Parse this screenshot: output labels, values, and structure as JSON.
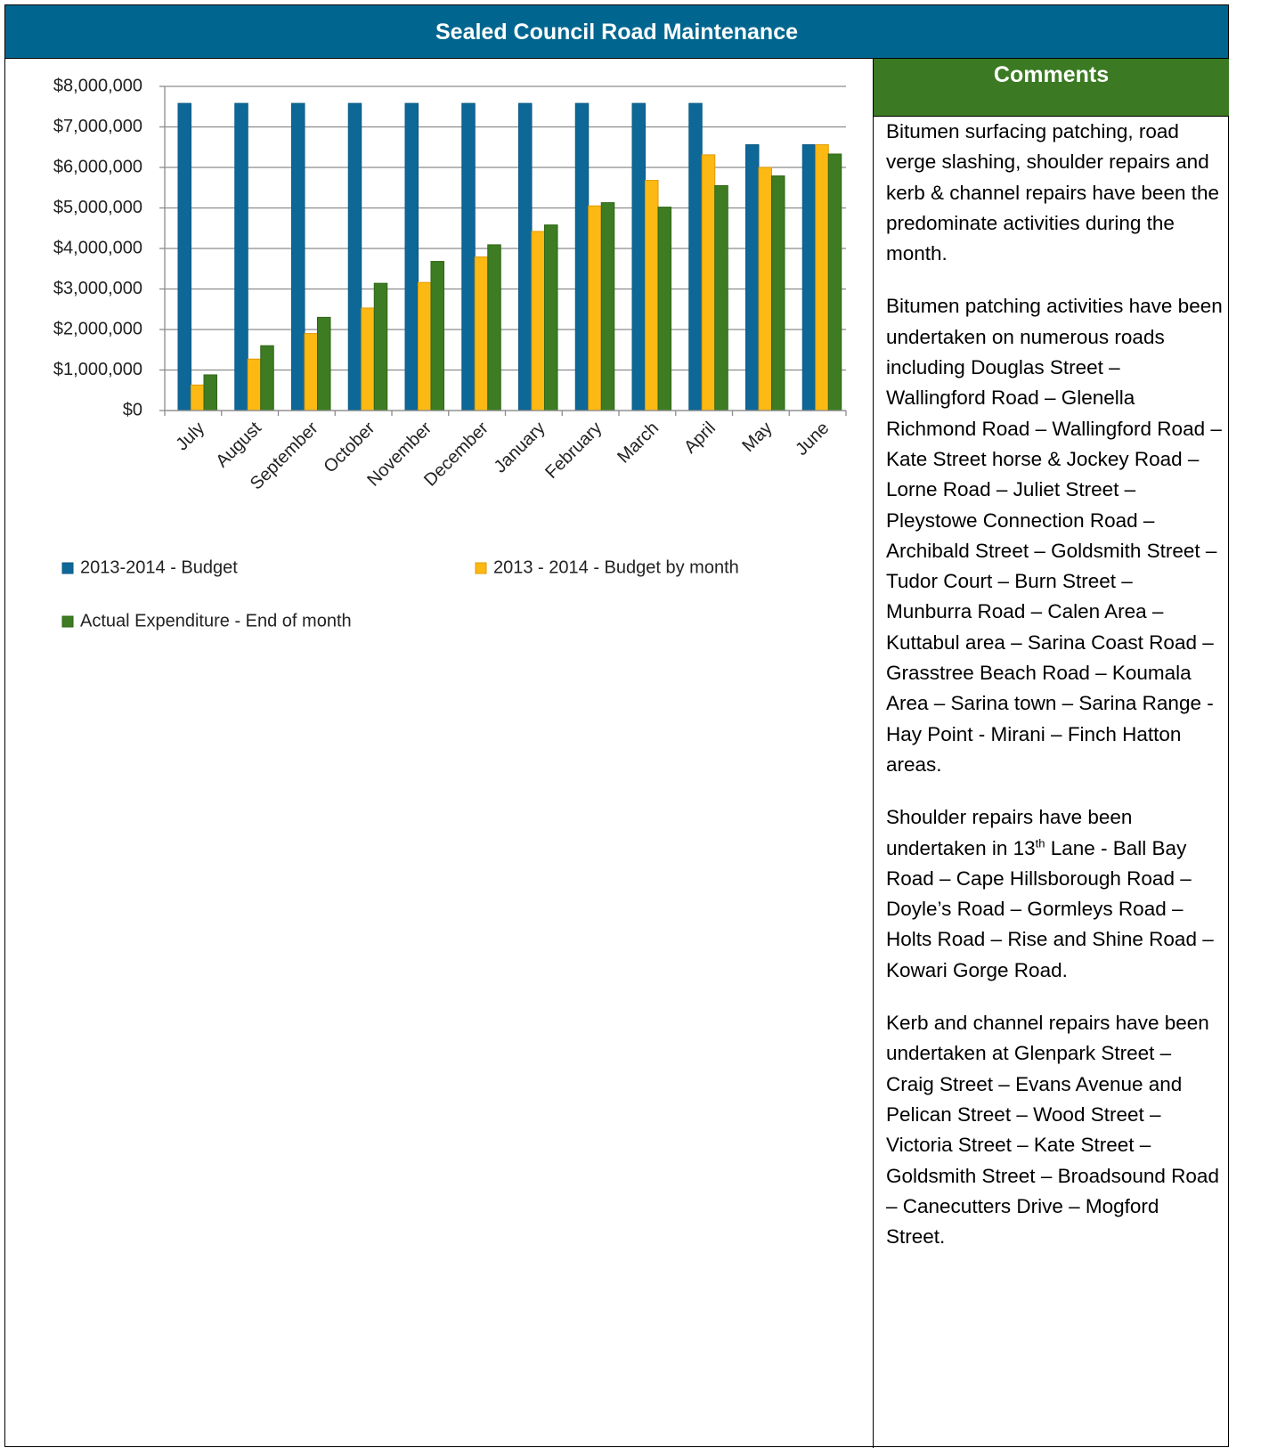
{
  "header": {
    "title": "Sealed Council Road Maintenance"
  },
  "chart_data": {
    "type": "bar",
    "categories": [
      "July",
      "August",
      "September",
      "October",
      "November",
      "December",
      "January",
      "February",
      "March",
      "April",
      "May",
      "June"
    ],
    "series": [
      {
        "name": "2013-2014 - Budget",
        "color": "#0d6797",
        "values": [
          7580000,
          7580000,
          7580000,
          7580000,
          7580000,
          7580000,
          7580000,
          7580000,
          7580000,
          7580000,
          6560000,
          6560000
        ]
      },
      {
        "name": "2013 - 2014 - Budget by month",
        "color": "#fdb913",
        "values": [
          630000,
          1270000,
          1900000,
          2530000,
          3160000,
          3790000,
          4420000,
          5050000,
          5680000,
          6310000,
          6000000,
          6560000
        ]
      },
      {
        "name": "Actual Expenditure - End of month",
        "color": "#3d7c22",
        "values": [
          880000,
          1600000,
          2300000,
          3140000,
          3680000,
          4090000,
          4580000,
          5130000,
          5020000,
          5550000,
          5790000,
          6330000
        ]
      }
    ],
    "ylim": [
      0,
      8000000
    ],
    "yticks": [
      {
        "value": 0,
        "label": "$0"
      },
      {
        "value": 1000000,
        "label": "$1,000,000"
      },
      {
        "value": 2000000,
        "label": "$2,000,000"
      },
      {
        "value": 3000000,
        "label": "$3,000,000"
      },
      {
        "value": 4000000,
        "label": "$4,000,000"
      },
      {
        "value": 5000000,
        "label": "$5,000,000"
      },
      {
        "value": 6000000,
        "label": "$6,000,000"
      },
      {
        "value": 7000000,
        "label": "$7,000,000"
      },
      {
        "value": 8000000,
        "label": "$8,000,000"
      }
    ],
    "grid": true
  },
  "comments": {
    "title": "Comments",
    "paragraphs": [
      [
        "Bitumen surfacing patching, road verge slashing, shoulder repairs and kerb & channel repairs have been the predominate activities during the month."
      ],
      [
        "Bitumen patching activities have been undertaken on numerous roads including Douglas Street – Wallingford Road – Glenella Richmond Road – Wallingford Road – Kate Street horse & Jockey Road – Lorne Road – Juliet Street – Pleystowe Connection Road – Archibald Street – Goldsmith Street – Tudor Court – Burn Street – Munburra Road – Calen Area – Kuttabul area – Sarina Coast Road – Grasstree Beach Road – Koumala Area – Sarina town – Sarina Range - Hay Point - Mirani – Finch Hatton areas."
      ],
      [
        "Shoulder repairs have been undertaken in 13",
        "th",
        " Lane - Ball Bay Road – Cape Hillsborough Road – Doyle’s Road – Gormleys Road – Holts Road – Rise and Shine Road – Kowari Gorge Road."
      ],
      [
        "Kerb and channel repairs have been undertaken at Glenpark Street – Craig Street – Evans Avenue and Pelican Street – Wood Street – Victoria Street – Kate Street – Goldsmith Street – Broadsound Road – Canecutters Drive – Mogford Street."
      ]
    ]
  }
}
